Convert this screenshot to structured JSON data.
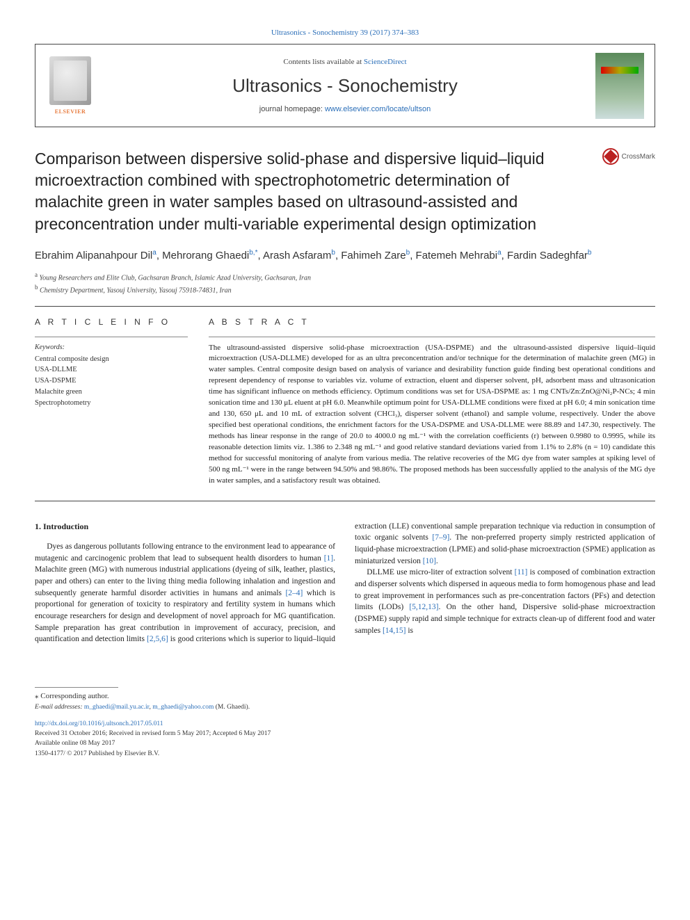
{
  "journal_ref": "Ultrasonics - Sonochemistry 39 (2017) 374–383",
  "header": {
    "contents_pre": "Contents lists available at ",
    "contents_link": "ScienceDirect",
    "journal_title": "Ultrasonics - Sonochemistry",
    "homepage_pre": "journal homepage: ",
    "homepage_link": "www.elsevier.com/locate/ultson",
    "elsevier_label": "ELSEVIER"
  },
  "crossmark": "CrossMark",
  "title": "Comparison between dispersive solid-phase and dispersive liquid–liquid microextraction combined with spectrophotometric determination of malachite green in water samples based on ultrasound-assisted and preconcentration under multi-variable experimental design optimization",
  "authors_html": "Ebrahim Alipanahpour Dil<sup>a</sup>, Mehrorang Ghaedi<sup>b,*</sup>, Arash Asfaram<sup>b</sup>, Fahimeh Zare<sup>b</sup>, Fatemeh Mehrabi<sup>a</sup>, Fardin Sadeghfar<sup>b</sup>",
  "affiliations": [
    {
      "sup": "a",
      "text": "Young Researchers and Elite Club, Gachsaran Branch, Islamic Azad University, Gachsaran, Iran"
    },
    {
      "sup": "b",
      "text": "Chemistry Department, Yasouj University, Yasouj 75918-74831, Iran"
    }
  ],
  "article_info_heading": "A R T I C L E  I N F O",
  "abstract_heading": "A B S T R A C T",
  "keywords_label": "Keywords:",
  "keywords": [
    "Central composite design",
    "USA-DLLME",
    "USA-DSPME",
    "Malachite green",
    "Spectrophotometry"
  ],
  "abstract": "The ultrasound-assisted dispersive solid-phase microextraction (USA-DSPME) and the ultrasound-assisted dispersive liquid–liquid microextraction (USA-DLLME) developed for as an ultra preconcentration and/or technique for the determination of malachite green (MG) in water samples. Central composite design based on analysis of variance and desirability function guide finding best operational conditions and represent dependency of response to variables viz. volume of extraction, eluent and disperser solvent, pH, adsorbent mass and ultrasonication time has significant influence on methods efficiency. Optimum conditions was set for USA-DSPME as: 1 mg CNTs/Zn:ZnO@Ni₂P-NCs; 4 min sonication time and 130 μL eluent at pH 6.0. Meanwhile optimum point for USA-DLLME conditions were fixed at pH 6.0; 4 min sonication time and 130, 650 μL and 10 mL of extraction solvent (CHCl₃), disperser solvent (ethanol) and sample volume, respectively. Under the above specified best operational conditions, the enrichment factors for the USA-DSPME and USA-DLLME were 88.89 and 147.30, respectively. The methods has linear response in the range of 20.0 to 4000.0 ng mL⁻¹ with the correlation coefficients (r) between 0.9980 to 0.9995, while its reasonable detection limits viz. 1.386 to 2.348 ng mL⁻¹ and good relative standard deviations varied from 1.1% to 2.8% (n = 10) candidate this method for successful monitoring of analyte from various media. The relative recoveries of the MG dye from water samples at spiking level of 500 ng mL⁻¹ were in the range between 94.50% and 98.86%. The proposed methods has been successfully applied to the analysis of the MG dye in water samples, and a satisfactory result was obtained.",
  "body": {
    "intro_heading": "1. Introduction",
    "para1_pre": "Dyes as dangerous pollutants following entrance to the environment lead to appearance of mutagenic and carcinogenic problem that lead to subsequent health disorders to human ",
    "cite1": "[1]",
    "para1_mid1": ". Malachite green (MG) with numerous industrial applications (dyeing of silk, leather, plastics, paper and others) can enter to the living thing media following inhalation and ingestion and subsequently generate harmful disorder activities in humans and animals ",
    "cite2": "[2–4]",
    "para1_mid2": " which is proportional for generation of toxicity to respiratory and fertility system in humans which encourage researchers for design and development of novel approach for MG quantification. Sample preparation has great contribution in improvement of accuracy, precision, and quantification and detection limits ",
    "cite3": "[2,5,6]",
    "para2_pre": " is good criterions which is superior to liquid–liquid extraction (LLE) conventional sample preparation technique via reduction in consumption of toxic organic solvents ",
    "cite4": "[7–9]",
    "para2_mid": ". The non-preferred property simply restricted application of liquid-phase microextraction (LPME) and solid-phase microextraction (SPME) application as miniaturized version ",
    "cite5": "[10]",
    "para2_end": ".",
    "para3_pre": "DLLME use micro-liter of extraction solvent ",
    "cite6": "[11]",
    "para3_mid1": " is composed of combination extraction and disperser solvents which dispersed in aqueous media to form homogenous phase and lead to great improvement in performances such as pre-concentration factors (PFs) and detection limits (LODs) ",
    "cite7": "[5,12,13]",
    "para3_mid2": ". On the other hand, Dispersive solid-phase microextraction (DSPME) supply rapid and simple technique for extracts clean-up of different food and water samples ",
    "cite8": "[14,15]",
    "para3_end": " is"
  },
  "footer": {
    "corr_author": "⁎ Corresponding author.",
    "email_label": "E-mail addresses:",
    "email1": "m_ghaedi@mail.yu.ac.ir",
    "email2": "m_ghaedi@yahoo.com",
    "email_suffix": " (M. Ghaedi).",
    "doi": "http://dx.doi.org/10.1016/j.ultsonch.2017.05.011",
    "received": "Received 31 October 2016; Received in revised form 5 May 2017; Accepted 6 May 2017",
    "available": "Available online 08 May 2017",
    "copyright": "1350-4177/ © 2017 Published by Elsevier B.V."
  },
  "colors": {
    "link": "#2a6eb8",
    "text": "#222222",
    "elsevier": "#e77a3c"
  }
}
